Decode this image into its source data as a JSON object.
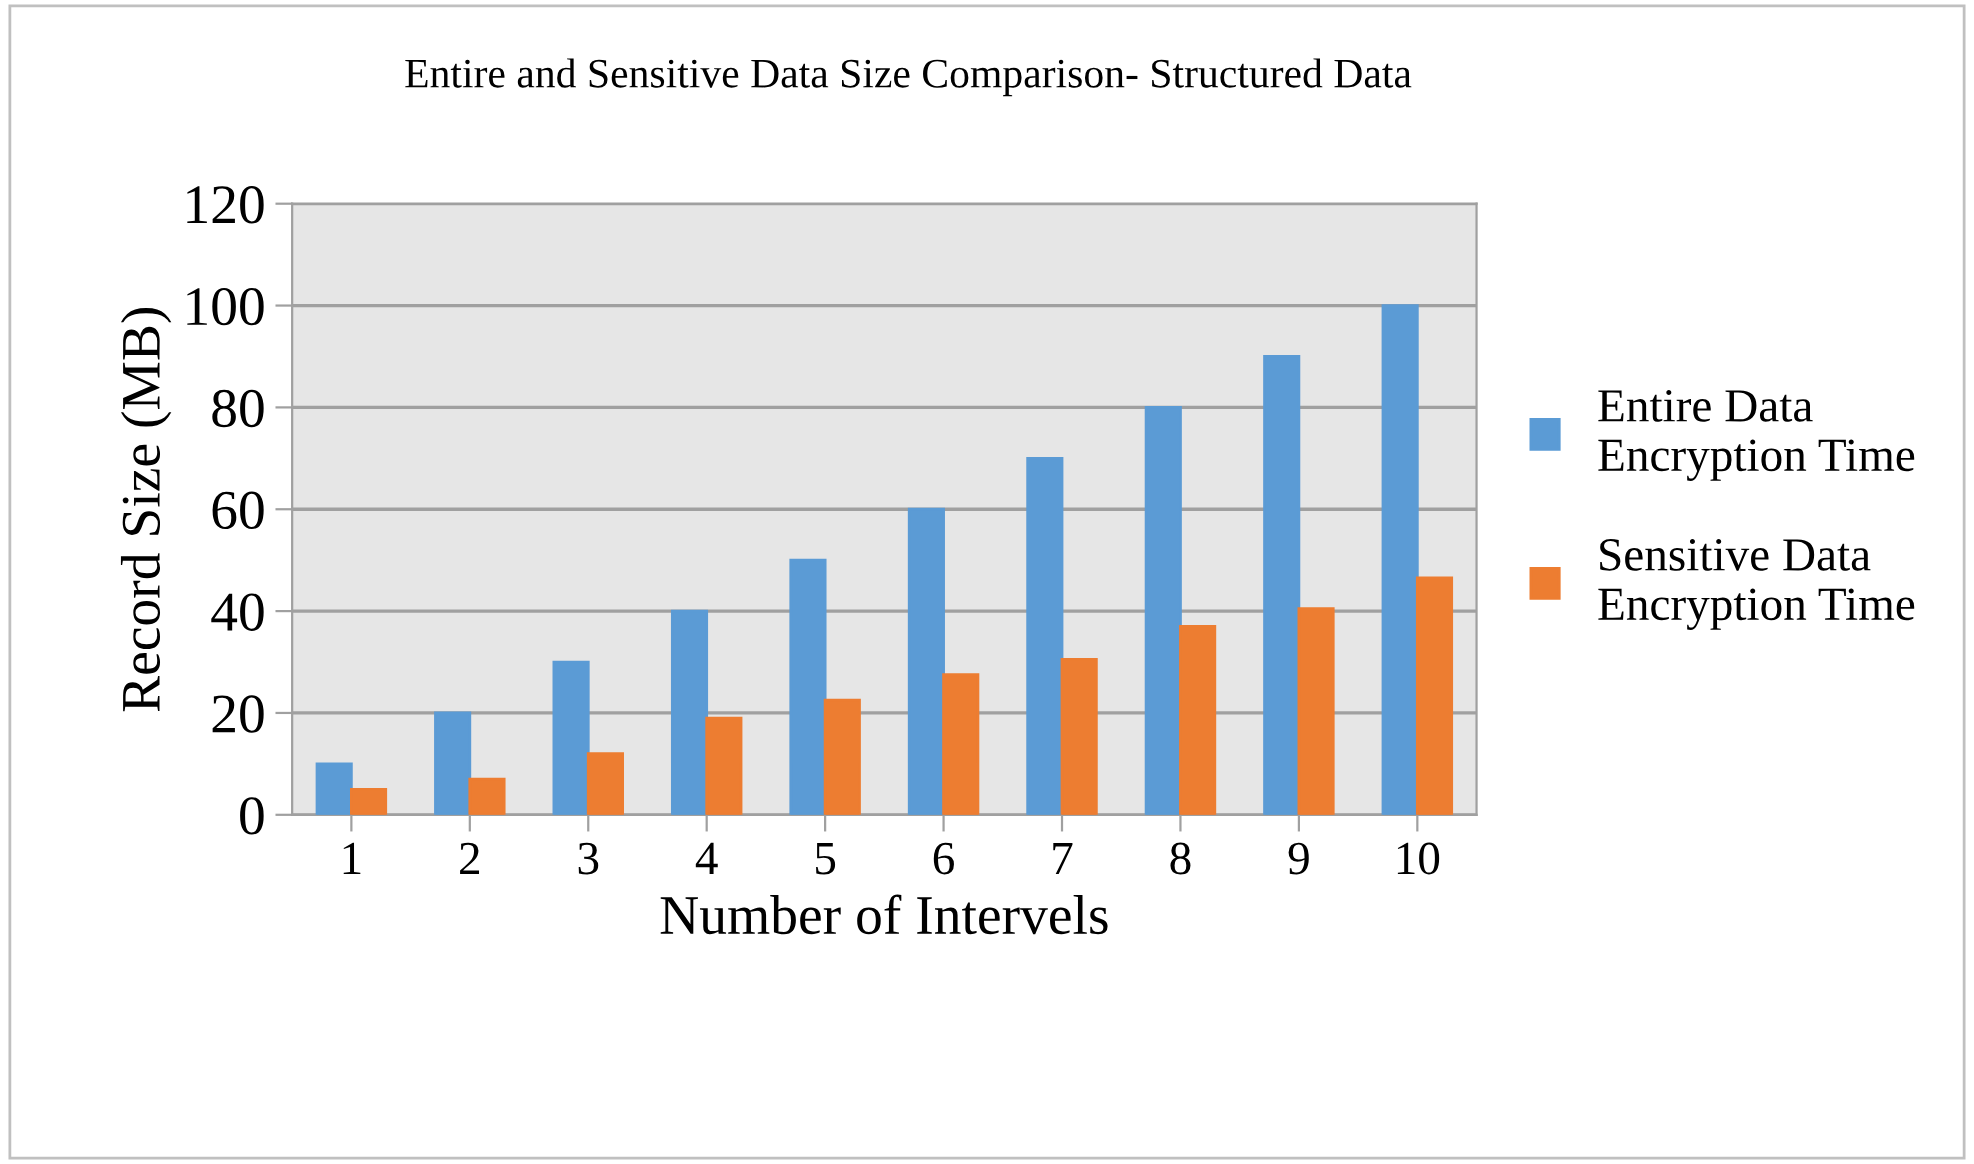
{
  "chart_data": {
    "type": "bar",
    "title": "Entire and Sensitive Data Size Comparison- Structured Data",
    "xlabel": "Number of Intervels",
    "ylabel": "Record Size (MB)",
    "categories": [
      "1",
      "2",
      "3",
      "4",
      "5",
      "6",
      "7",
      "8",
      "9",
      "10"
    ],
    "series": [
      {
        "name": "Entire Data Encryption Time",
        "color": "#5b9bd5",
        "values": [
          10,
          20,
          30,
          40,
          50,
          60,
          70,
          80,
          90,
          100
        ]
      },
      {
        "name": "Sensitive Data Encryption Time",
        "color": "#ed7d31",
        "values": [
          5,
          7,
          12,
          19,
          22.5,
          27.5,
          30.5,
          37,
          40.5,
          46.5
        ]
      }
    ],
    "ylim": [
      0,
      120
    ],
    "yticks": [
      0,
      20,
      40,
      60,
      80,
      100,
      120
    ],
    "grid": "y",
    "legend": "right"
  }
}
